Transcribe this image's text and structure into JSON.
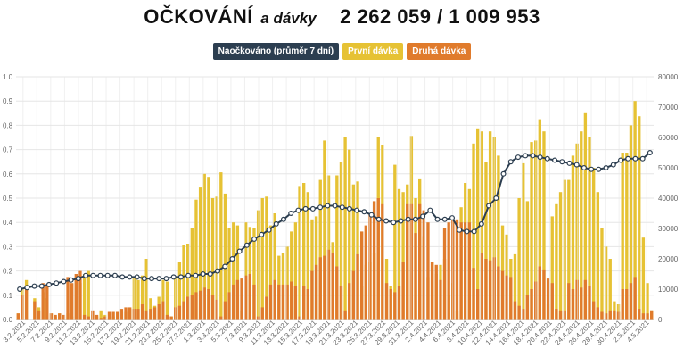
{
  "title": {
    "main": "OČKOVÁNÍ",
    "sub": "a dávky",
    "numbers": "2 262 059 / 1 009 953"
  },
  "colors": {
    "line": "#2c3e50",
    "first": "#e6c234",
    "second": "#e07b2c",
    "grid": "#e6e6e6",
    "axis_text": "#666666"
  },
  "chart_data": {
    "type": "bar",
    "legend": [
      {
        "label": "Naočkováno (průměr 7 dní)",
        "color": "#2c3e50"
      },
      {
        "label": "První dávka",
        "color": "#e6c234"
      },
      {
        "label": "Druhá dávka",
        "color": "#e07b2c"
      }
    ],
    "legend_position": "top-center",
    "grid": true,
    "y_left": {
      "ticks": [
        "0.0",
        "0.1",
        "0.2",
        "0.3",
        "0.4",
        "0.5",
        "0.6",
        "0.7",
        "0.8",
        "0.9",
        "1.0"
      ],
      "range": [
        0,
        1
      ]
    },
    "y_right": {
      "ticks": [
        "0",
        "10000",
        "20000",
        "30000",
        "40000",
        "50000",
        "60000",
        "70000",
        "80000"
      ],
      "range": [
        0,
        80000
      ]
    },
    "x_tick_labels": [
      "3.2.2021",
      "5.2.2021",
      "7.2.2021",
      "9.2.2021",
      "11.2.2021",
      "13.2.2021",
      "15.2.2021",
      "17.2.2021",
      "19.2.2021",
      "21.2.2021",
      "23.2.2021",
      "25.2.2021",
      "27.2.2021",
      "1.3.2021",
      "3.3.2021",
      "5.3.2021",
      "7.3.2021",
      "9.3.2021",
      "11.3.2021",
      "13.3.2021",
      "15.3.2021",
      "17.3.2021",
      "19.3.2021",
      "21.3.2021",
      "23.3.2021",
      "25.3.2021",
      "27.3.2021",
      "29.3.2021",
      "31.3.2021",
      "2.4.2021",
      "4.4.2021",
      "6.4.2021",
      "8.4.2021",
      "10.4.2021",
      "12.4.2021",
      "14.4.2021",
      "16.4.2021",
      "18.4.2021",
      "20.4.2021",
      "22.4.2021",
      "24.4.2021",
      "26.4.2021",
      "28.4.2021",
      "30.4.2021",
      "2.5.2021",
      "4.5.2021"
    ],
    "series": [
      {
        "name": "První dávka",
        "values": [
          2000,
          10000,
          13000,
          0,
          7000,
          4000,
          9000,
          7000,
          2000,
          1000,
          2000,
          1000,
          2000,
          1000,
          14000,
          12000,
          15000,
          16000,
          1500,
          1000,
          3000,
          1500,
          500,
          1000,
          2500,
          2500,
          2500,
          3500,
          14000,
          13000,
          14500,
          20000,
          7000,
          4500,
          7500,
          13000,
          12500,
          1000,
          13500,
          19000,
          24500,
          25000,
          30000,
          39500,
          43500,
          48000,
          47000,
          40000,
          40500,
          48500,
          41500,
          30000,
          32000,
          31000,
          3000,
          32000,
          30500,
          30000,
          36000,
          40000,
          40500,
          31000,
          35000,
          21000,
          22000,
          24000,
          29000,
          32000,
          44000,
          45000,
          42000,
          33000,
          34000,
          46000,
          59000,
          47500,
          25500,
          47500,
          52000,
          60000,
          56000,
          44500,
          45500,
          11000,
          18000,
          19000,
          22000,
          60000,
          57500,
          20000,
          11000,
          51000,
          43000,
          42000,
          44500,
          60500,
          40000,
          46500,
          27500,
          14000,
          19000,
          15000,
          18000,
          20000,
          8000,
          12000,
          3000,
          37000,
          45000,
          43000,
          58000,
          63000,
          62000,
          52000,
          62000,
          60000,
          54000,
          31000,
          28000,
          20000,
          21500,
          40000,
          51500,
          39000,
          58500,
          59000,
          66000,
          62000,
          5000,
          34000,
          38000,
          42000,
          46000,
          46000,
          54000,
          58000,
          62000,
          68000,
          60000,
          50000,
          42000,
          30000,
          24000,
          20000,
          6000,
          5000,
          55000,
          55000,
          64000,
          72000,
          67000,
          27000,
          12000,
          3000
        ]
      },
      {
        "name": "Druhá dávka",
        "values": [
          2000,
          8000,
          11000,
          0,
          6000,
          3000,
          12000,
          11000,
          2000,
          1500,
          2000,
          1500,
          14000,
          12000,
          15000,
          16000,
          1500,
          1000,
          3000,
          1500,
          500,
          1000,
          2500,
          2500,
          2500,
          3500,
          4000,
          4000,
          3500,
          3500,
          5000,
          3000,
          3500,
          4000,
          5000,
          6000,
          1500,
          1000,
          4000,
          4500,
          6000,
          7500,
          8000,
          9000,
          9500,
          10500,
          10000,
          8000,
          6500,
          1000,
          6000,
          9000,
          11500,
          13000,
          13500,
          14500,
          15000,
          11500,
          1000,
          4000,
          7500,
          11500,
          13000,
          11500,
          11500,
          11500,
          12500,
          11000,
          1000,
          11000,
          10000,
          16000,
          18000,
          20500,
          21000,
          23000,
          22000,
          17500,
          11000,
          3000,
          12000,
          16000,
          21500,
          29000,
          31000,
          35000,
          39000,
          40000,
          38000,
          12000,
          10000,
          9000,
          11000,
          19000,
          38000,
          38000,
          28500,
          38000,
          36000,
          32000,
          19000,
          18000,
          13000,
          30000,
          32000,
          33000,
          33000,
          32000,
          32000,
          32000,
          17000,
          10000,
          22000,
          20000,
          19500,
          20500,
          17500,
          16000,
          14500,
          14000,
          6000,
          4500,
          3500,
          8000,
          10000,
          12500,
          17500,
          16500,
          13500,
          12000,
          3500,
          3000,
          3000,
          12000,
          10000,
          13000,
          10500,
          13000,
          11000,
          6000,
          4000,
          2500,
          2000,
          3000,
          3000,
          2500,
          10000,
          10000,
          12000,
          14000,
          3500,
          2000,
          2000,
          3000
        ]
      },
      {
        "name": "Naočkováno (průměr 7 dní)",
        "values": [
          10000,
          10500,
          11000,
          11000,
          11500,
          12000,
          12500,
          13000,
          13500,
          14500,
          14500,
          14500,
          14500,
          14500,
          14000,
          14000,
          14000,
          13500,
          13500,
          13500,
          13500,
          14000,
          14000,
          14500,
          14500,
          15000,
          15000,
          16000,
          17500,
          20000,
          22500,
          24500,
          26500,
          28000,
          29500,
          31500,
          33000,
          35000,
          36000,
          36500,
          36500,
          37000,
          37500,
          37500,
          37000,
          36500,
          36000,
          35500,
          34500,
          33000,
          32500,
          32000,
          32500,
          33000,
          33000,
          34000,
          36000,
          33000,
          33000,
          33500,
          29500,
          29000,
          29000,
          31500,
          37500,
          40000,
          48000,
          52000,
          53500,
          54000,
          54000,
          53500,
          53000,
          52500,
          52000,
          51500,
          51000,
          50000,
          49500,
          49500,
          50000,
          51000,
          52500,
          53000,
          53000,
          53000,
          55000
        ]
      }
    ]
  }
}
